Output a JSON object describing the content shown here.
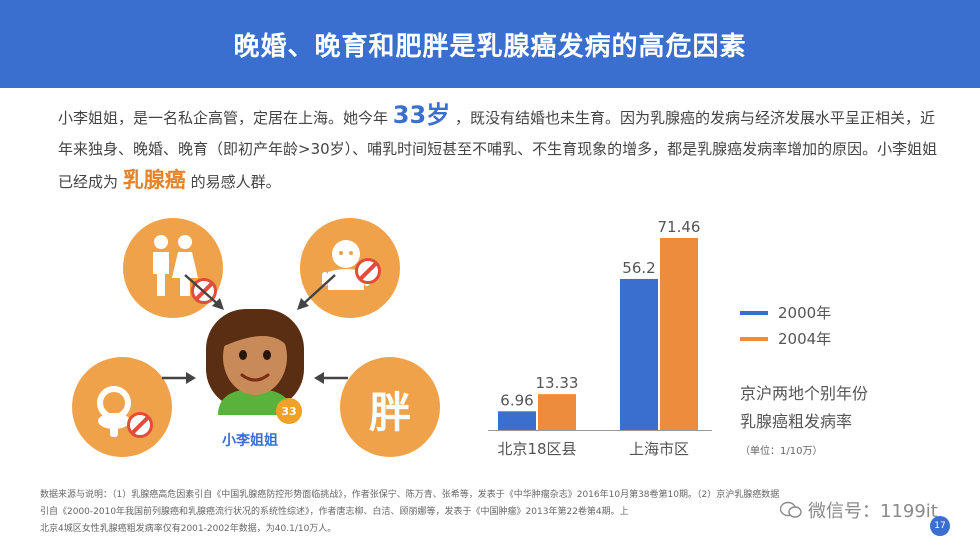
{
  "header": {
    "title": "晚婚、晚育和肥胖是乳腺癌发病的高危因素"
  },
  "intro": {
    "p1": "小李姐姐，是一名私企高管，定居在上海。她今年",
    "age_highlight": "33岁",
    "p2": "，既没有结婚也未生育。因为乳腺癌的发病与经济发展水平呈正相关，近年来独身、晚婚、晚育（即初产年龄>30岁）、哺乳时间短甚至不哺乳、不生育现象的增多，都是乳腺癌发病率增加的原因。小李姐姐已经成为",
    "disease_highlight": "乳腺癌",
    "p3": "的易感人群。"
  },
  "risk_icons": {
    "marriage": "couple-icon",
    "baby": "baby-icon",
    "pacifier": "pacifier-icon",
    "fat_label": "胖"
  },
  "person": {
    "name": "小李姐姐",
    "age_badge": "33"
  },
  "colors": {
    "blue": "#3a6fd0",
    "orange": "#ec8c3c",
    "circle": "#f0a24a",
    "ban": "#e34b3a"
  },
  "chart_data": {
    "type": "bar",
    "categories": [
      "北京18区县",
      "上海市区"
    ],
    "series": [
      {
        "name": "2000年",
        "values": [
          6.96,
          56.2
        ]
      },
      {
        "name": "2004年",
        "values": [
          13.33,
          71.46
        ]
      }
    ],
    "value_labels": [
      [
        "6.96",
        "56.2"
      ],
      [
        "13.33",
        "71.46"
      ]
    ],
    "ylim": [
      0,
      80
    ],
    "grid": false,
    "legend_position": "right",
    "caption_line1": "京沪两地个别年份",
    "caption_line2": "乳腺癌粗发病率",
    "unit": "（单位：1/10万）"
  },
  "footer": {
    "line1": "数据来源与说明：（1）乳腺癌高危因素引自《中国乳腺癌防控形势面临挑战》，作者张保宁、陈万青、张希等，发表于《中华肿瘤杂志》2016年10月第38卷第10期。（2）京沪乳腺癌数据",
    "line2": "引自《2000-2010年我国前列腺癌和乳腺癌流行状况的系统性综述》，作者唐志柳、白洁、顾丽娜等，发表于《中国肿瘤》2013年第22卷第4期。上",
    "line3": "北京4城区女性乳腺癌粗发病率仅有2001-2002年数据，为40.1/10万人。"
  },
  "watermark": {
    "text": "微信号：1199it"
  },
  "page": {
    "number": "17"
  }
}
